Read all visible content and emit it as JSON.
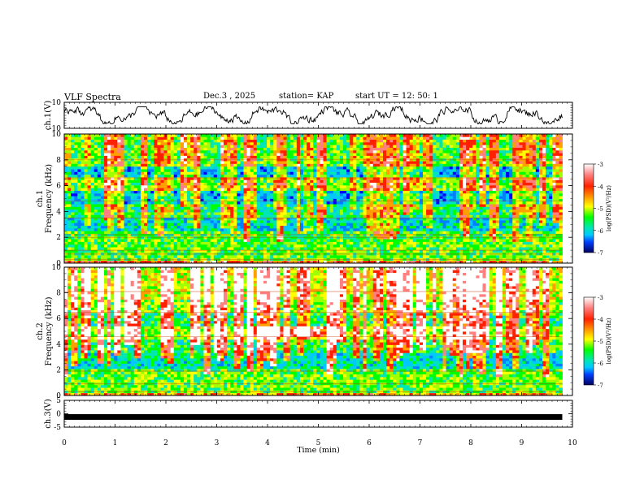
{
  "header": {
    "title": "VLF Spectra",
    "date": "Dec.3 , 2025",
    "station": "station= KAP",
    "start": "start UT = 12: 50: 1"
  },
  "chart_data": [
    {
      "type": "line",
      "panel": "ch1-waveform",
      "ylabel": "ch.1(V)",
      "ylim": [
        -10,
        10
      ],
      "yticks": [
        "10",
        "-10"
      ],
      "series": [
        {
          "name": "ch.1 waveform",
          "description_range": [
            -5,
            5
          ]
        }
      ]
    },
    {
      "type": "heatmap",
      "panel": "ch1-spectrogram",
      "ylabel": "ch.1\nFrequency (kHz)",
      "ylabel_line1": "ch.1",
      "ylabel_line2": "Frequency (kHz)",
      "ylim": [
        0,
        10
      ],
      "yticks": [
        "0",
        "2",
        "4",
        "6",
        "8",
        "10"
      ],
      "colorbar": {
        "label": "log(PSD)(V²/Hz)",
        "ticks": [
          "-3",
          "-4",
          "-5",
          "-6",
          "-7"
        ],
        "range": [
          -7,
          -3
        ]
      }
    },
    {
      "type": "heatmap",
      "panel": "ch2-spectrogram",
      "ylabel": "ch.2\nFrequency (kHz)",
      "ylabel_line1": "ch.2",
      "ylabel_line2": "Frequency (kHz)",
      "ylim": [
        0,
        10
      ],
      "yticks": [
        "0",
        "2",
        "4",
        "6",
        "8",
        "10"
      ],
      "colorbar": {
        "label": "log(PSD)(V²/Hz)",
        "ticks": [
          "-3",
          "-4",
          "-5",
          "-6",
          "-7"
        ],
        "range": [
          -7,
          -3
        ]
      }
    },
    {
      "type": "line",
      "panel": "ch3-signal",
      "ylabel": "ch.3(V)",
      "ylim": [
        -5,
        5
      ],
      "yticks": [
        "5",
        "0",
        "-5"
      ],
      "series": [
        {
          "name": "ch.3 level",
          "values_approx": [
            -1.2,
            -1.2
          ]
        }
      ]
    }
  ],
  "xaxis": {
    "label": "Time (min)",
    "range": [
      0,
      10
    ],
    "ticks": [
      "0",
      "1",
      "2",
      "3",
      "4",
      "5",
      "6",
      "7",
      "8",
      "9",
      "10"
    ],
    "data_end": 9.8
  },
  "colors": {
    "colormap": [
      "#000080",
      "#0000ff",
      "#0080ff",
      "#00c8ff",
      "#00e6b4",
      "#00ff00",
      "#a0ff00",
      "#ffff00",
      "#ffa000",
      "#ff2000",
      "#ff8080",
      "#ffffff"
    ]
  }
}
